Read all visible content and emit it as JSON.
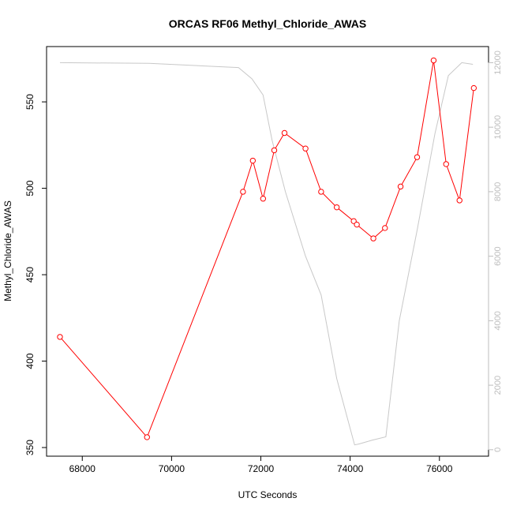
{
  "chart_data": {
    "type": "line",
    "title": "ORCAS RF06 Methyl_Chloride_AWAS",
    "xlabel": "UTC Seconds",
    "ylabel": "Methyl_Chloride_AWAS",
    "xlim": [
      67200,
      77100
    ],
    "ylim": [
      345,
      582
    ],
    "y2lim": [
      -200,
      12500
    ],
    "x_ticks": [
      68000,
      70000,
      72000,
      74000,
      76000
    ],
    "y_ticks": [
      350,
      400,
      450,
      500,
      550
    ],
    "y2_ticks": [
      0,
      2000,
      4000,
      6000,
      8000,
      10000,
      12000
    ],
    "grid": false,
    "series": [
      {
        "axis": "left",
        "color": "#ff0000",
        "marker": "open-circle",
        "x": [
          67500,
          69450,
          71600,
          71820,
          72050,
          72300,
          72530,
          73000,
          73350,
          73700,
          74080,
          74150,
          74520,
          74780,
          75130,
          75500,
          75870,
          76150,
          76450,
          76770
        ],
        "y": [
          414,
          356,
          498,
          516,
          494,
          522,
          532,
          523,
          498,
          489,
          481,
          479,
          471,
          477,
          501,
          518,
          574,
          514,
          493,
          558
        ]
      },
      {
        "axis": "right",
        "color": "#c8c8c8",
        "marker": "none",
        "x": [
          67500,
          69500,
          71500,
          71800,
          72050,
          72250,
          72550,
          73000,
          73350,
          73700,
          74100,
          74200,
          74500,
          74800,
          75100,
          75500,
          75900,
          76200,
          76500,
          76750
        ],
        "y": [
          12000,
          11980,
          11850,
          11500,
          11000,
          9600,
          8000,
          6000,
          4800,
          2200,
          150,
          180,
          300,
          400,
          4000,
          6800,
          9800,
          11600,
          12000,
          11950
        ]
      }
    ]
  }
}
